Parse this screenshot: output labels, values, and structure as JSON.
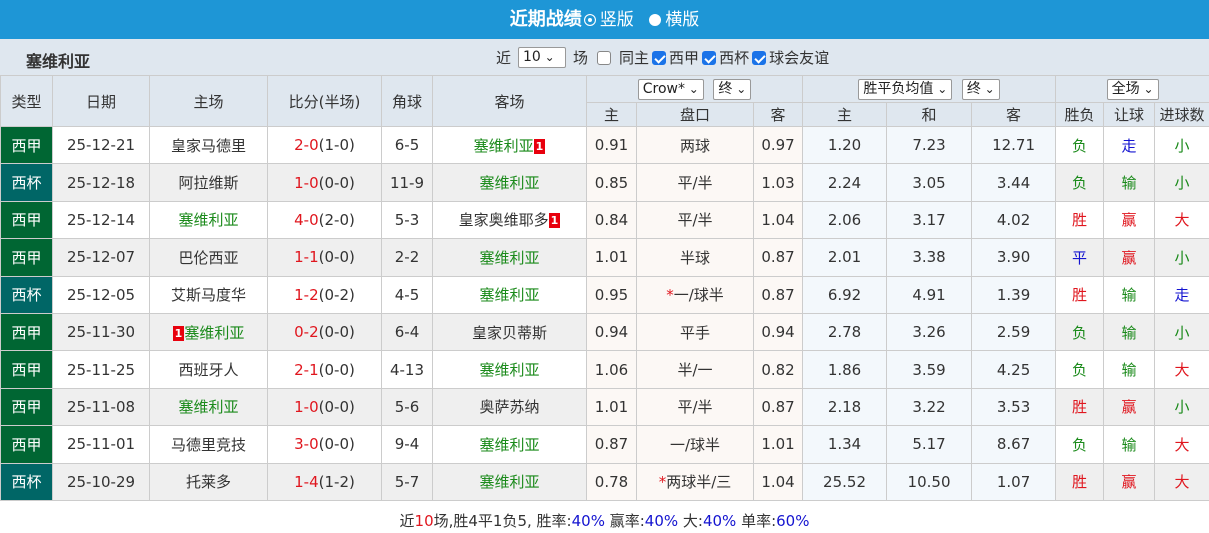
{
  "header": {
    "title": "近期战绩",
    "view_options": [
      {
        "label": "竖版",
        "selected": true
      },
      {
        "label": "横版",
        "selected": false
      }
    ],
    "accent": "#1e96d6"
  },
  "filter": {
    "team": "塞维利亚",
    "recent_prefix": "近",
    "recent_count": "10",
    "recent_suffix": "场",
    "checkboxes": [
      {
        "label": "同主",
        "checked": false
      },
      {
        "label": "西甲",
        "checked": true
      },
      {
        "label": "西杯",
        "checked": true
      },
      {
        "label": "球会友谊",
        "checked": true
      }
    ]
  },
  "table": {
    "columns": {
      "type": "类型",
      "date": "日期",
      "home": "主场",
      "score": "比分(半场)",
      "corner": "角球",
      "away": "客场"
    },
    "selects": {
      "company": "Crow*",
      "handicap_stage": "终",
      "odds_type": "胜平负均值",
      "odds_stage": "终",
      "period": "全场"
    },
    "sub_columns": {
      "ah_home": "主",
      "ah_line": "盘口",
      "ah_away": "客",
      "eu_home": "主",
      "eu_draw": "和",
      "eu_away": "客",
      "result": "胜负",
      "handicap": "让球",
      "goals": "进球数"
    },
    "rows": [
      {
        "type": "西甲",
        "type_color": "#006633",
        "date": "25-12-21",
        "home": "皇家马德里",
        "home_green": false,
        "home_badge": "",
        "score": "2-0",
        "half": "(1-0)",
        "corner": "6-5",
        "away": "塞维利亚",
        "away_green": true,
        "away_badge": "1",
        "ah_home": "0.91",
        "ah_line": "两球",
        "ah_star": false,
        "ah_away": "0.97",
        "eu_home": "1.20",
        "eu_draw": "7.23",
        "eu_away": "12.71",
        "result": "负",
        "handicap": "走",
        "goals": "小"
      },
      {
        "type": "西杯",
        "type_color": "#006666",
        "date": "25-12-18",
        "home": "阿拉维斯",
        "home_green": false,
        "home_badge": "",
        "score": "1-0",
        "half": "(0-0)",
        "corner": "11-9",
        "away": "塞维利亚",
        "away_green": true,
        "away_badge": "",
        "ah_home": "0.85",
        "ah_line": "平/半",
        "ah_star": false,
        "ah_away": "1.03",
        "eu_home": "2.24",
        "eu_draw": "3.05",
        "eu_away": "3.44",
        "result": "负",
        "handicap": "输",
        "goals": "小"
      },
      {
        "type": "西甲",
        "type_color": "#006633",
        "date": "25-12-14",
        "home": "塞维利亚",
        "home_green": true,
        "home_badge": "",
        "score": "4-0",
        "half": "(2-0)",
        "corner": "5-3",
        "away": "皇家奥维耶多",
        "away_green": false,
        "away_badge": "1",
        "ah_home": "0.84",
        "ah_line": "平/半",
        "ah_star": false,
        "ah_away": "1.04",
        "eu_home": "2.06",
        "eu_draw": "3.17",
        "eu_away": "4.02",
        "result": "胜",
        "handicap": "赢",
        "goals": "大"
      },
      {
        "type": "西甲",
        "type_color": "#006633",
        "date": "25-12-07",
        "home": "巴伦西亚",
        "home_green": false,
        "home_badge": "",
        "score": "1-1",
        "half": "(0-0)",
        "corner": "2-2",
        "away": "塞维利亚",
        "away_green": true,
        "away_badge": "",
        "ah_home": "1.01",
        "ah_line": "半球",
        "ah_star": false,
        "ah_away": "0.87",
        "eu_home": "2.01",
        "eu_draw": "3.38",
        "eu_away": "3.90",
        "result": "平",
        "handicap": "赢",
        "goals": "小"
      },
      {
        "type": "西杯",
        "type_color": "#006666",
        "date": "25-12-05",
        "home": "艾斯马度华",
        "home_green": false,
        "home_badge": "",
        "score": "1-2",
        "half": "(0-2)",
        "corner": "4-5",
        "away": "塞维利亚",
        "away_green": true,
        "away_badge": "",
        "ah_home": "0.95",
        "ah_line": "一/球半",
        "ah_star": true,
        "ah_away": "0.87",
        "eu_home": "6.92",
        "eu_draw": "4.91",
        "eu_away": "1.39",
        "result": "胜",
        "handicap": "输",
        "goals": "走"
      },
      {
        "type": "西甲",
        "type_color": "#006633",
        "date": "25-11-30",
        "home": "塞维利亚",
        "home_green": true,
        "home_badge": "1",
        "score": "0-2",
        "half": "(0-0)",
        "corner": "6-4",
        "away": "皇家贝蒂斯",
        "away_green": false,
        "away_badge": "",
        "ah_home": "0.94",
        "ah_line": "平手",
        "ah_star": false,
        "ah_away": "0.94",
        "eu_home": "2.78",
        "eu_draw": "3.26",
        "eu_away": "2.59",
        "result": "负",
        "handicap": "输",
        "goals": "小"
      },
      {
        "type": "西甲",
        "type_color": "#006633",
        "date": "25-11-25",
        "home": "西班牙人",
        "home_green": false,
        "home_badge": "",
        "score": "2-1",
        "half": "(0-0)",
        "corner": "4-13",
        "away": "塞维利亚",
        "away_green": true,
        "away_badge": "",
        "ah_home": "1.06",
        "ah_line": "半/一",
        "ah_star": false,
        "ah_away": "0.82",
        "eu_home": "1.86",
        "eu_draw": "3.59",
        "eu_away": "4.25",
        "result": "负",
        "handicap": "输",
        "goals": "大"
      },
      {
        "type": "西甲",
        "type_color": "#006633",
        "date": "25-11-08",
        "home": "塞维利亚",
        "home_green": true,
        "home_badge": "",
        "score": "1-0",
        "half": "(0-0)",
        "corner": "5-6",
        "away": "奥萨苏纳",
        "away_green": false,
        "away_badge": "",
        "ah_home": "1.01",
        "ah_line": "平/半",
        "ah_star": false,
        "ah_away": "0.87",
        "eu_home": "2.18",
        "eu_draw": "3.22",
        "eu_away": "3.53",
        "result": "胜",
        "handicap": "赢",
        "goals": "小"
      },
      {
        "type": "西甲",
        "type_color": "#006633",
        "date": "25-11-01",
        "home": "马德里竞技",
        "home_green": false,
        "home_badge": "",
        "score": "3-0",
        "half": "(0-0)",
        "corner": "9-4",
        "away": "塞维利亚",
        "away_green": true,
        "away_badge": "",
        "ah_home": "0.87",
        "ah_line": "一/球半",
        "ah_star": false,
        "ah_away": "1.01",
        "eu_home": "1.34",
        "eu_draw": "5.17",
        "eu_away": "8.67",
        "result": "负",
        "handicap": "输",
        "goals": "大"
      },
      {
        "type": "西杯",
        "type_color": "#006666",
        "date": "25-10-29",
        "home": "托莱多",
        "home_green": false,
        "home_badge": "",
        "score": "1-4",
        "half": "(1-2)",
        "corner": "5-7",
        "away": "塞维利亚",
        "away_green": true,
        "away_badge": "",
        "ah_home": "0.78",
        "ah_line": "两球半/三",
        "ah_star": true,
        "ah_away": "1.04",
        "eu_home": "25.52",
        "eu_draw": "10.50",
        "eu_away": "1.07",
        "result": "胜",
        "handicap": "赢",
        "goals": "大"
      }
    ]
  },
  "summary": {
    "prefix": "近",
    "count": "10",
    "text1": "场,胜4平1负5, 胜率:",
    "win_rate": "40%",
    "text2": " 赢率:",
    "cover_rate": "40%",
    "text3": " 大:",
    "over_rate": "40%",
    "text4": " 单率:",
    "odd_rate": "60%"
  }
}
